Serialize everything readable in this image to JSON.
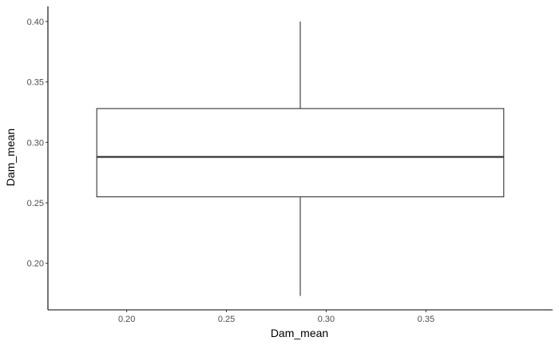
{
  "chart_data": {
    "type": "boxplot",
    "title": "",
    "xlabel": "Dam_mean",
    "ylabel": "Dam_mean",
    "x_ticks": [
      "0.20",
      "0.25",
      "0.30",
      "0.35"
    ],
    "y_ticks": [
      "0.20",
      "0.25",
      "0.30",
      "0.35",
      "0.40"
    ],
    "xlim": [
      0.1605,
      0.4135
    ],
    "ylim": [
      0.1615,
      0.4125
    ],
    "grid": false,
    "box": {
      "x_left": 0.185,
      "x_right": 0.389,
      "x_center": 0.287,
      "whisker_low": 0.173,
      "q1": 0.255,
      "median": 0.288,
      "q3": 0.328,
      "whisker_high": 0.4
    },
    "colors": {
      "line": "#333333",
      "axis": "#000000",
      "tick_text": "#4d4d4d"
    }
  }
}
